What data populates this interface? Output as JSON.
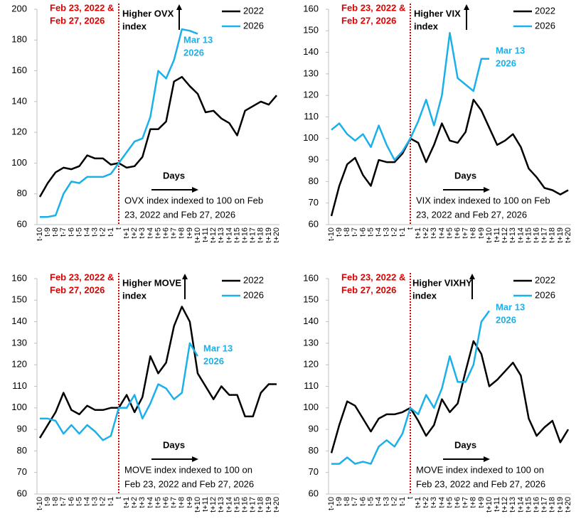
{
  "chart_data": [
    {
      "type": "line",
      "annotations": {
        "event_date": [
          "Feb 23, 2022 &",
          "Feb 27, 2026"
        ],
        "direction": [
          "Higher OVX",
          "index"
        ],
        "last_date": [
          "Mar 13",
          "2026"
        ],
        "x_direction": "Days",
        "note": [
          "OVX index indexed to 100 on Feb",
          "23, 2022 and Feb 27, 2026"
        ]
      },
      "categories": [
        "t-10",
        "t-9",
        "t-8",
        "t-7",
        "t-6",
        "t-5",
        "t-4",
        "t-3",
        "t-2",
        "t-1",
        "t",
        "t+1",
        "t+2",
        "t+3",
        "t+4",
        "t+5",
        "t+6",
        "t+7",
        "t+8",
        "t+9",
        "t+10",
        "t+11",
        "t+12",
        "t+13",
        "t+14",
        "t+15",
        "t+16",
        "t+17",
        "t+18",
        "t+19",
        "t+20"
      ],
      "series": [
        {
          "name": "2022",
          "color": "#000000",
          "values": [
            78,
            87,
            94,
            97,
            96,
            98,
            105,
            103,
            103,
            99,
            100,
            97,
            98,
            104,
            122,
            122,
            127,
            153,
            156,
            150,
            145,
            133,
            134,
            129,
            126,
            118,
            134,
            137,
            140,
            138,
            144
          ]
        },
        {
          "name": "2026",
          "color": "#1ab0ea",
          "values": [
            65,
            65,
            66,
            80,
            88,
            87,
            91,
            91,
            91,
            93,
            100,
            107,
            114,
            116,
            130,
            160,
            155,
            167,
            187,
            186,
            184,
            null,
            null,
            null,
            null,
            null,
            null,
            null,
            null,
            null,
            null
          ]
        }
      ],
      "ylim": [
        60,
        200
      ],
      "yticks": [
        60,
        80,
        100,
        120,
        140,
        160,
        180,
        200
      ]
    },
    {
      "type": "line",
      "annotations": {
        "event_date": [
          "Feb 23, 2022 &",
          "Feb 27, 2026"
        ],
        "direction": [
          "Higher VIX",
          "index"
        ],
        "last_date": [
          "Mar 13",
          "2026"
        ],
        "x_direction": "Days",
        "note": [
          "VIX index indexed to 100 on Feb",
          "23, 2022 and Feb 27, 2026"
        ]
      },
      "categories": [
        "t-10",
        "t-9",
        "t-8",
        "t-7",
        "t-6",
        "t-5",
        "t-4",
        "t-3",
        "t-2",
        "t-1",
        "t",
        "t+1",
        "t+2",
        "t+3",
        "t+4",
        "t+5",
        "t+6",
        "t+7",
        "t+8",
        "t+9",
        "t+10",
        "t+11",
        "t+12",
        "t+13",
        "t+14",
        "t+15",
        "t+16",
        "t+17",
        "t+18",
        "t+19",
        "t+20"
      ],
      "series": [
        {
          "name": "2022",
          "color": "#000000",
          "values": [
            64,
            78,
            88,
            91,
            83,
            78,
            90,
            89,
            89,
            93,
            100,
            98,
            89,
            97,
            107,
            99,
            98,
            103,
            118,
            113,
            105,
            97,
            99,
            102,
            96,
            86,
            82,
            77,
            76,
            74,
            76
          ]
        },
        {
          "name": "2026",
          "color": "#1ab0ea",
          "values": [
            104,
            107,
            102,
            99,
            102,
            96,
            106,
            97,
            90,
            94,
            100,
            108,
            118,
            106,
            120,
            149,
            128,
            125,
            122,
            137,
            137,
            null,
            null,
            null,
            null,
            null,
            null,
            null,
            null,
            null,
            null
          ]
        }
      ],
      "ylim": [
        60,
        160
      ],
      "yticks": [
        60,
        70,
        80,
        90,
        100,
        110,
        120,
        130,
        140,
        150,
        160
      ]
    },
    {
      "type": "line",
      "annotations": {
        "event_date": [
          "Feb 23, 2022 &",
          "Feb 27, 2026"
        ],
        "direction": [
          "Higher MOVE",
          "index"
        ],
        "last_date": [
          "Mar 13",
          "2026"
        ],
        "x_direction": "Days",
        "note": [
          "MOVE index indexed to 100 on",
          "Feb 23, 2022 and Feb 27, 2026"
        ]
      },
      "categories": [
        "t-10",
        "t-9",
        "t-8",
        "t-7",
        "t-6",
        "t-5",
        "t-4",
        "t-3",
        "t-2",
        "t-1",
        "t",
        "t+1",
        "t+2",
        "t+3",
        "t+4",
        "t+5",
        "t+6",
        "t+7",
        "t+8",
        "t+9",
        "t+10",
        "t+11",
        "t+12",
        "t+13",
        "t+14",
        "t+15",
        "t+16",
        "t+17",
        "t+18",
        "t+19",
        "t+20"
      ],
      "series": [
        {
          "name": "2022",
          "color": "#000000",
          "values": [
            86,
            92,
            98,
            107,
            99,
            97,
            101,
            99,
            99,
            100,
            100,
            106,
            98,
            105,
            124,
            116,
            121,
            138,
            147,
            140,
            116,
            110,
            104,
            110,
            106,
            106,
            96,
            96,
            107,
            111,
            111
          ]
        },
        {
          "name": "2026",
          "color": "#1ab0ea",
          "values": [
            95,
            95,
            94,
            88,
            92,
            88,
            92,
            89,
            85,
            87,
            100,
            100,
            106,
            95,
            102,
            111,
            109,
            104,
            107,
            130,
            124,
            null,
            null,
            null,
            null,
            null,
            null,
            null,
            null,
            null,
            null
          ]
        }
      ],
      "ylim": [
        60,
        160
      ],
      "yticks": [
        60,
        70,
        80,
        90,
        100,
        110,
        120,
        130,
        140,
        150,
        160
      ]
    },
    {
      "type": "line",
      "annotations": {
        "event_date": [
          "Feb 23, 2022 &",
          "Feb 27, 2026"
        ],
        "direction": [
          "Higher VIXHY",
          "index"
        ],
        "last_date": [
          "Mar 13",
          "2026"
        ],
        "x_direction": "Days",
        "note": [
          "MOVE index indexed to 100 on",
          "Feb 23, 2022 and Feb 27, 2026"
        ]
      },
      "categories": [
        "t-10",
        "t-9",
        "t-8",
        "t-7",
        "t-6",
        "t-5",
        "t-4",
        "t-3",
        "t-2",
        "t-1",
        "t",
        "t+1",
        "t+2",
        "t+3",
        "t+4",
        "t+5",
        "t+6",
        "t+7",
        "t+8",
        "t+9",
        "t+10",
        "t+11",
        "t+12",
        "t+13",
        "t+14",
        "t+15",
        "t+16",
        "t+17",
        "t+18",
        "t+19",
        "t+20"
      ],
      "series": [
        {
          "name": "2022",
          "color": "#000000",
          "values": [
            79,
            92,
            103,
            101,
            95,
            89,
            95,
            97,
            97,
            98,
            100,
            94,
            87,
            92,
            104,
            98,
            102,
            117,
            131,
            125,
            110,
            113,
            117,
            121,
            115,
            95,
            87,
            91,
            94,
            84,
            90
          ]
        },
        {
          "name": "2026",
          "color": "#1ab0ea",
          "values": [
            74,
            74,
            77,
            74,
            75,
            74,
            82,
            85,
            82,
            88,
            100,
            97,
            106,
            100,
            109,
            124,
            112,
            112,
            120,
            140,
            145,
            null,
            null,
            null,
            null,
            null,
            null,
            null,
            null,
            null,
            null
          ]
        }
      ],
      "ylim": [
        60,
        160
      ],
      "yticks": [
        60,
        70,
        80,
        90,
        100,
        110,
        120,
        130,
        140,
        150,
        160
      ]
    }
  ]
}
